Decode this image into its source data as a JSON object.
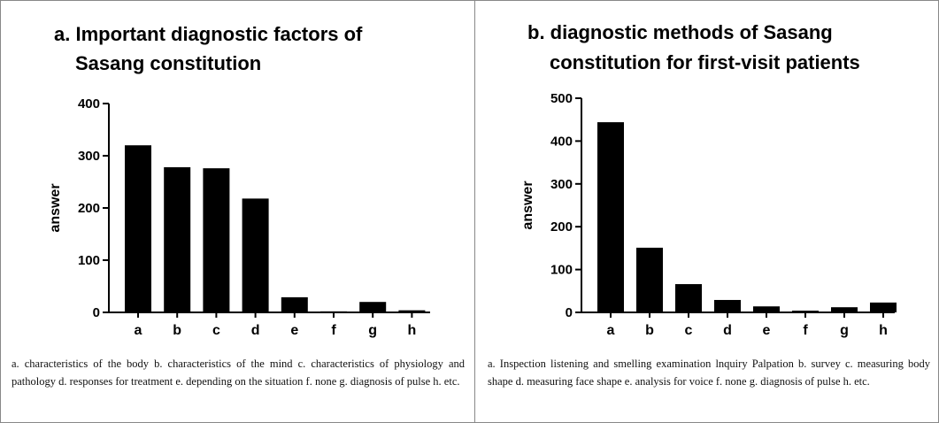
{
  "chart_data": [
    {
      "type": "bar",
      "title": [
        "a. Important diagnostic factors of",
        "Sasang constitution"
      ],
      "ylabel": "answer",
      "categories": [
        "a",
        "b",
        "c",
        "d",
        "e",
        "f",
        "g",
        "h"
      ],
      "values": [
        320,
        278,
        276,
        218,
        29,
        2,
        20,
        4
      ],
      "color": "#000000",
      "ylim": [
        0,
        400
      ],
      "yticks": [
        0,
        100,
        200,
        300,
        400
      ],
      "caption": "a. characteristics of the body b. characteristics of the mind c. characteristics of physiology and pathology d. responses for treatment e. depending on the situation f. none g. diagnosis of pulse h. etc."
    },
    {
      "type": "bar",
      "title": [
        "b. diagnostic methods of Sasang",
        "constitution for first-visit patients"
      ],
      "ylabel": "answer",
      "categories": [
        "a",
        "b",
        "c",
        "d",
        "e",
        "f",
        "g",
        "h"
      ],
      "values": [
        444,
        151,
        66,
        29,
        14,
        4,
        12,
        23
      ],
      "color": "#000000",
      "ylim": [
        0,
        500
      ],
      "yticks": [
        0,
        100,
        200,
        300,
        400,
        500
      ],
      "caption": "a. Inspection listening and smelling examination lnquiry Palpation b. survey c. measuring body shape d. measuring face shape e. analysis for voice f. none g. diagnosis of pulse h. etc."
    }
  ]
}
